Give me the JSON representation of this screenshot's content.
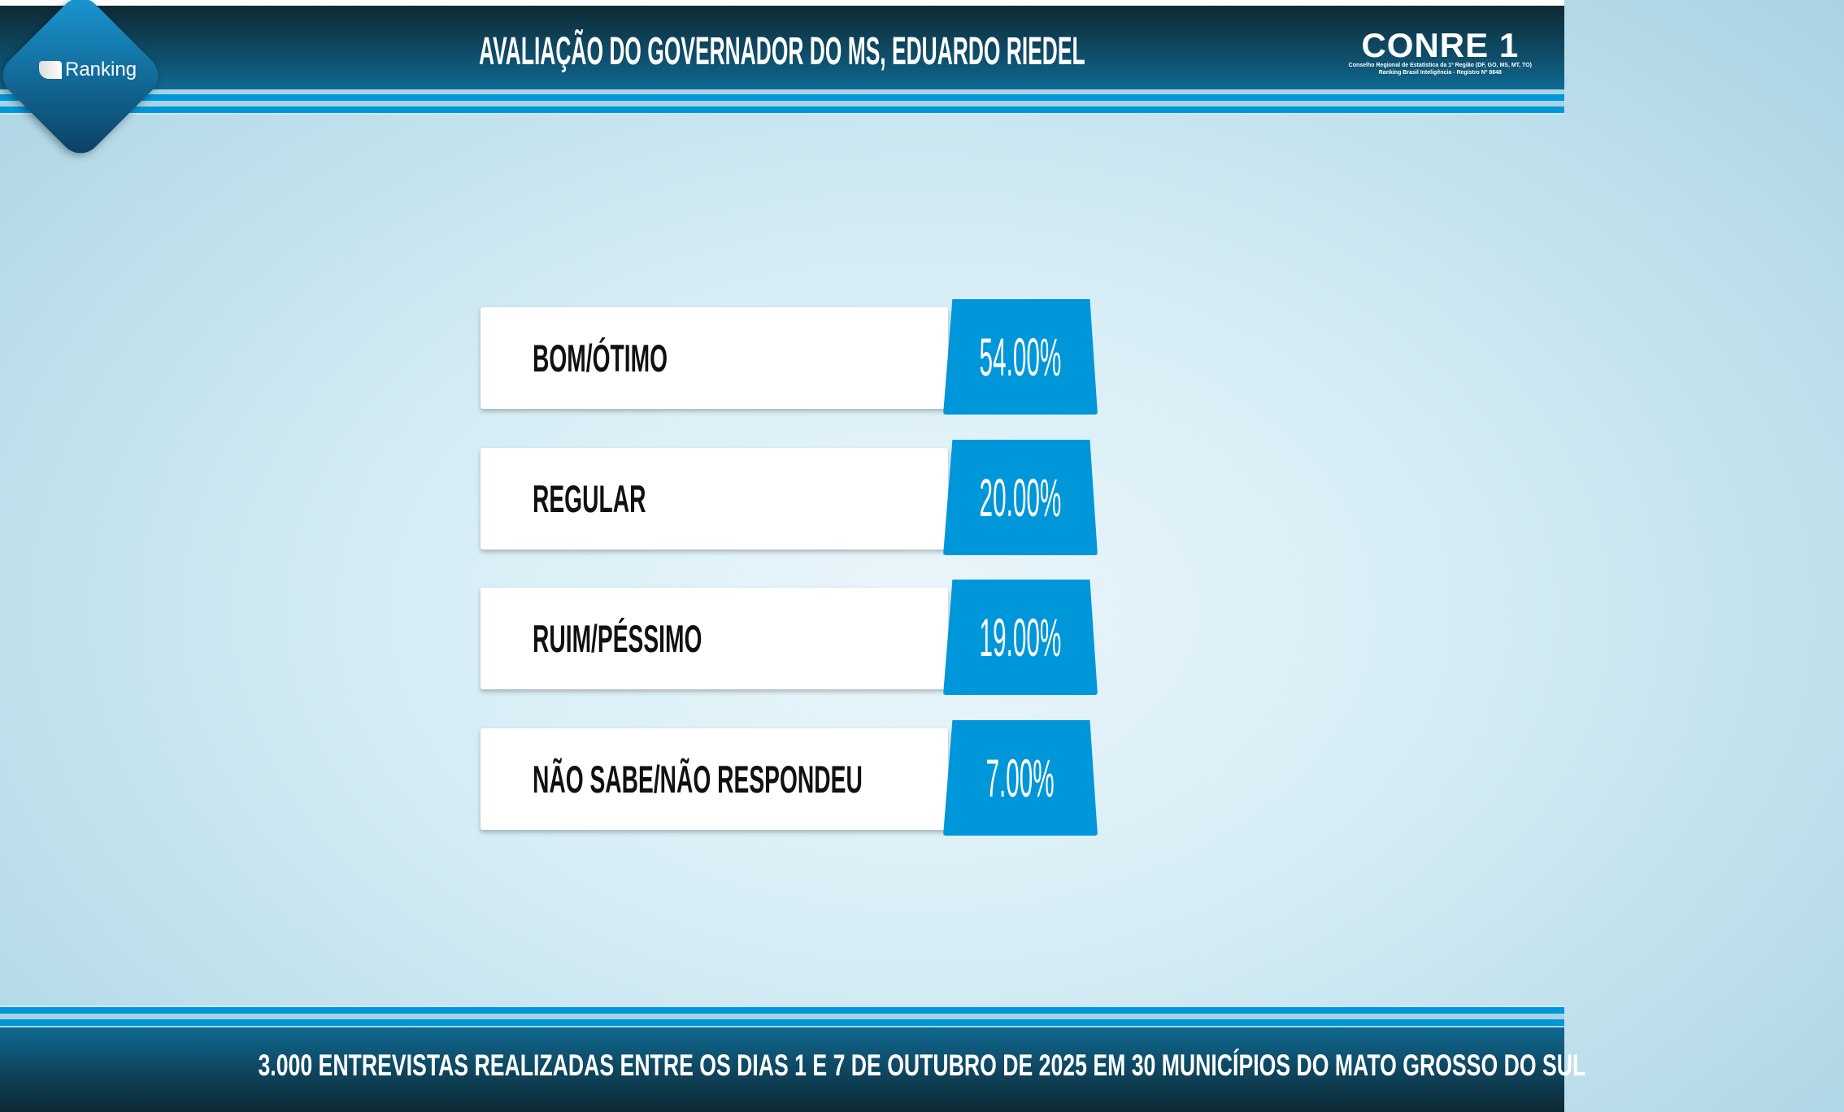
{
  "header": {
    "title": "AVALIAÇÃO DO GOVERNADOR DO MS, EDUARDO RIEDEL",
    "logo_left": "Ranking",
    "logo_right": "CONRE 1",
    "logo_right_sub1": "Conselho Regional de Estatística da 1ª Região (DF, GO, MS, MT, TO)",
    "logo_right_sub2": "Ranking Brasil Inteligência - Registro Nº 8848"
  },
  "chart_data": {
    "type": "bar",
    "categories": [
      "BOM/ÓTIMO",
      "REGULAR",
      "RUIM/PÉSSIMO",
      "NÃO SABE/NÃO RESPONDEU"
    ],
    "values": [
      54,
      20,
      19,
      7
    ],
    "labels": [
      "54.00%",
      "20.00%",
      "19.00%",
      "7.00%"
    ],
    "title": "AVALIAÇÃO DO GOVERNADOR DO MS, EDUARDO RIEDEL",
    "colors": {
      "value_box": "#0096da",
      "label_box": "#ffffff"
    }
  },
  "footer": {
    "note": "3.000 ENTREVISTAS REALIZADAS ENTRE OS DIAS 1 E 7 DE OUTUBRO DE 2025 EM 30 MUNICÍPIOS DO MATO GROSSO DO SUL"
  }
}
